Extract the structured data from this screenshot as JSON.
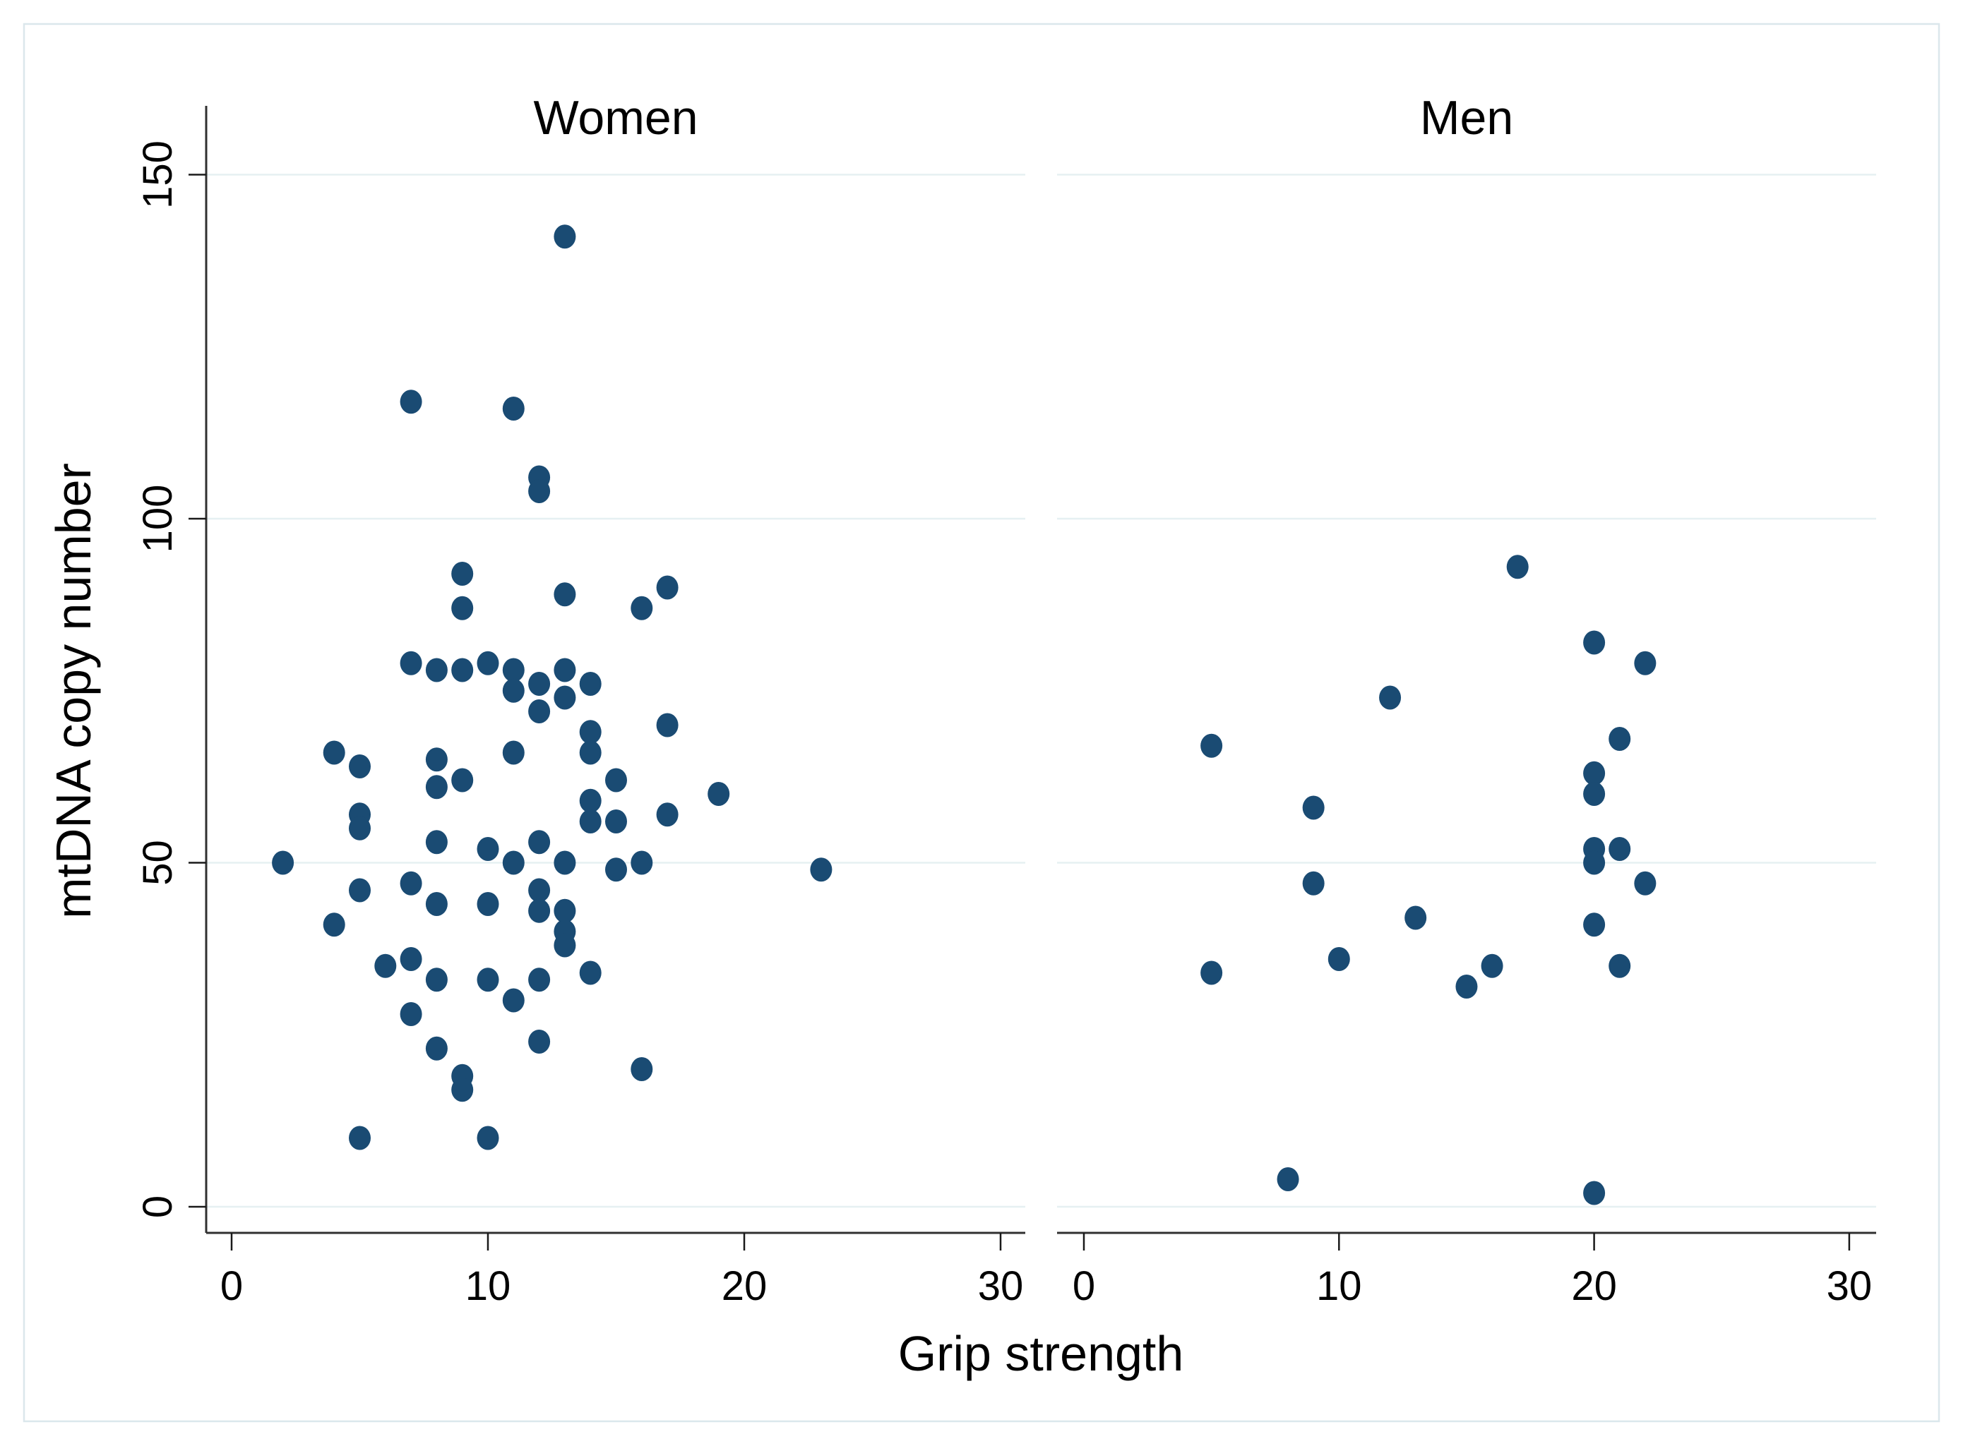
{
  "chart_data": {
    "type": "scatter",
    "xlabel": "Grip strength",
    "ylabel": "mtDNA copy number",
    "x_ticks": [
      0,
      10,
      20,
      30
    ],
    "y_ticks": [
      0,
      50,
      100,
      150
    ],
    "xlim": [
      -1,
      31
    ],
    "ylim": [
      -4,
      160
    ],
    "grid": true,
    "legend_position": "none",
    "colors": {
      "point": "#1a4b73",
      "grid": "#e6f0f2",
      "axis": "#303030",
      "tick": "#1a1a1a",
      "text": "#000000",
      "figure_border": "#dbe7ec",
      "background": "#ffffff"
    },
    "panels": [
      {
        "label": "Women",
        "points": [
          [
            13,
            141
          ],
          [
            7,
            117
          ],
          [
            11,
            116
          ],
          [
            12,
            106
          ],
          [
            12,
            104
          ],
          [
            9,
            92
          ],
          [
            17,
            90
          ],
          [
            13,
            89
          ],
          [
            9,
            87
          ],
          [
            16,
            87
          ],
          [
            7,
            79
          ],
          [
            10,
            79
          ],
          [
            8,
            78
          ],
          [
            9,
            78
          ],
          [
            11,
            78
          ],
          [
            13,
            78
          ],
          [
            12,
            76
          ],
          [
            14,
            76
          ],
          [
            11,
            75
          ],
          [
            13,
            74
          ],
          [
            12,
            72
          ],
          [
            17,
            70
          ],
          [
            14,
            69
          ],
          [
            4,
            66
          ],
          [
            11,
            66
          ],
          [
            14,
            66
          ],
          [
            8,
            65
          ],
          [
            5,
            64
          ],
          [
            9,
            62
          ],
          [
            15,
            62
          ],
          [
            8,
            61
          ],
          [
            19,
            60
          ],
          [
            14,
            59
          ],
          [
            5,
            57
          ],
          [
            17,
            57
          ],
          [
            14,
            56
          ],
          [
            15,
            56
          ],
          [
            5,
            55
          ],
          [
            8,
            53
          ],
          [
            12,
            53
          ],
          [
            10,
            52
          ],
          [
            2,
            50
          ],
          [
            11,
            50
          ],
          [
            13,
            50
          ],
          [
            16,
            50
          ],
          [
            15,
            49
          ],
          [
            23,
            49
          ],
          [
            7,
            47
          ],
          [
            5,
            46
          ],
          [
            12,
            46
          ],
          [
            8,
            44
          ],
          [
            10,
            44
          ],
          [
            12,
            43
          ],
          [
            13,
            43
          ],
          [
            4,
            41
          ],
          [
            13,
            40
          ],
          [
            13,
            38
          ],
          [
            7,
            36
          ],
          [
            6,
            35
          ],
          [
            14,
            34
          ],
          [
            8,
            33
          ],
          [
            10,
            33
          ],
          [
            12,
            33
          ],
          [
            11,
            30
          ],
          [
            7,
            28
          ],
          [
            12,
            24
          ],
          [
            8,
            23
          ],
          [
            16,
            20
          ],
          [
            9,
            19
          ],
          [
            9,
            17
          ],
          [
            5,
            10
          ],
          [
            10,
            10
          ]
        ]
      },
      {
        "label": "Men",
        "points": [
          [
            17,
            93
          ],
          [
            20,
            82
          ],
          [
            22,
            79
          ],
          [
            12,
            74
          ],
          [
            21,
            68
          ],
          [
            5,
            67
          ],
          [
            20,
            63
          ],
          [
            20,
            60
          ],
          [
            9,
            58
          ],
          [
            20,
            52
          ],
          [
            21,
            52
          ],
          [
            20,
            50
          ],
          [
            9,
            47
          ],
          [
            22,
            47
          ],
          [
            13,
            42
          ],
          [
            20,
            41
          ],
          [
            10,
            36
          ],
          [
            16,
            35
          ],
          [
            21,
            35
          ],
          [
            5,
            34
          ],
          [
            15,
            32
          ],
          [
            8,
            4
          ],
          [
            20,
            2
          ]
        ]
      }
    ]
  }
}
